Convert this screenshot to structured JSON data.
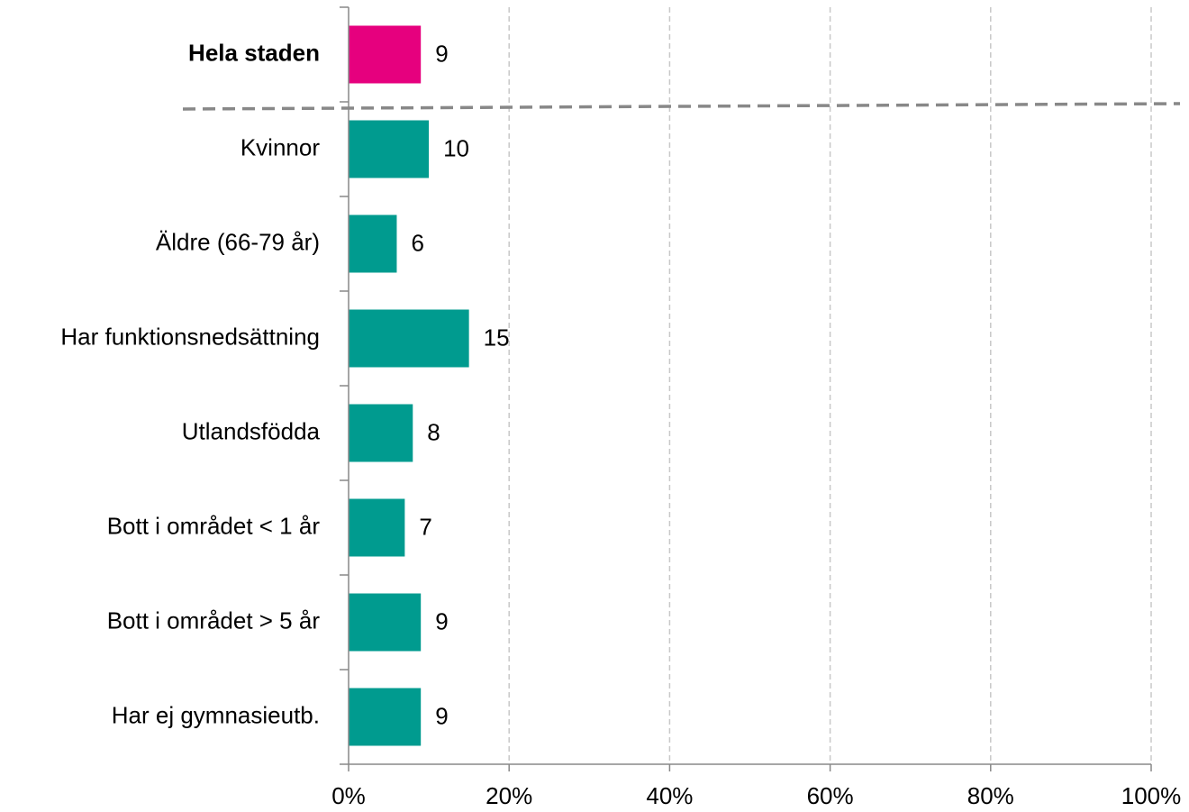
{
  "chart_data": {
    "type": "hbar",
    "categories": [
      "Hela staden",
      "Kvinnor",
      "Äldre (66-79 år)",
      "Har funktionsnedsättning",
      "Utlandsfödda",
      "Bott i området < 1 år",
      "Bott i området > 5 år",
      "Har ej gymnasieutb."
    ],
    "values": [
      9,
      10,
      6,
      15,
      8,
      7,
      9,
      9
    ],
    "colors": [
      "#e6007e",
      "#009b8f",
      "#009b8f",
      "#009b8f",
      "#009b8f",
      "#009b8f",
      "#009b8f",
      "#009b8f"
    ],
    "xlim": [
      0,
      100
    ],
    "xticks": [
      {
        "value": 0,
        "label": "0%"
      },
      {
        "value": 20,
        "label": "20%"
      },
      {
        "value": 40,
        "label": "40%"
      },
      {
        "value": 60,
        "label": "60%"
      },
      {
        "value": 80,
        "label": "80%"
      },
      {
        "value": 100,
        "label": "100%"
      }
    ],
    "grid": true
  }
}
